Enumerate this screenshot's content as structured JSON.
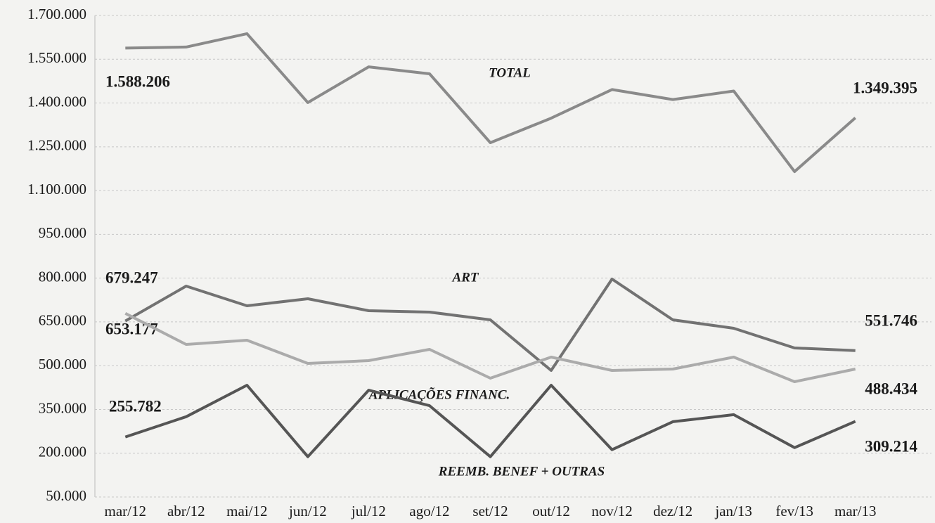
{
  "chart_data": {
    "type": "line",
    "categories": [
      "mar/12",
      "abr/12",
      "mai/12",
      "jun/12",
      "jul/12",
      "ago/12",
      "set/12",
      "out/12",
      "nov/12",
      "dez/12",
      "jan/13",
      "fev/13",
      "mar/13"
    ],
    "series": [
      {
        "name": "TOTAL",
        "color": "#8a8a8a",
        "values": [
          1588206,
          1591760,
          1637500,
          1401500,
          1524000,
          1500000,
          1264000,
          1348000,
          1446000,
          1412000,
          1441000,
          1165000,
          1349395
        ],
        "value_labels": [
          "1.588.206",
          null,
          null,
          null,
          null,
          null,
          null,
          null,
          null,
          null,
          null,
          null,
          "1.349.395"
        ]
      },
      {
        "name": "ART",
        "color": "#727272",
        "values": [
          653177,
          772700,
          705250,
          729350,
          688400,
          683600,
          657000,
          483600,
          796800,
          657000,
          628200,
          560700,
          551746
        ],
        "value_labels": [
          "653.177",
          null,
          null,
          null,
          null,
          null,
          null,
          null,
          null,
          null,
          null,
          null,
          "551.746"
        ]
      },
      {
        "name": "APLICAÇÕES FINANC.",
        "color": "#ababab",
        "values": [
          679247,
          572800,
          587200,
          507700,
          517300,
          555900,
          457100,
          529400,
          483600,
          488400,
          529400,
          445100,
          488434
        ],
        "value_labels": [
          "679.247",
          null,
          null,
          null,
          null,
          null,
          null,
          null,
          null,
          null,
          null,
          null,
          "488.434"
        ]
      },
      {
        "name": "REEMB. BENEF + OUTRAS",
        "color": "#555555",
        "values": [
          255782,
          325000,
          433000,
          188000,
          416000,
          363000,
          188000,
          433000,
          212000,
          308000,
          332000,
          219000,
          309214
        ],
        "value_labels": [
          "255.782",
          null,
          null,
          null,
          null,
          null,
          null,
          null,
          null,
          null,
          null,
          null,
          "309.214"
        ]
      }
    ],
    "ylim": [
      50000,
      1700000
    ],
    "yticks": [
      {
        "value": 50000,
        "label": "50.000"
      },
      {
        "value": 200000,
        "label": "200.000"
      },
      {
        "value": 350000,
        "label": "350.000"
      },
      {
        "value": 500000,
        "label": "500.000"
      },
      {
        "value": 650000,
        "label": "650.000"
      },
      {
        "value": 800000,
        "label": "800.000"
      },
      {
        "value": 950000,
        "label": "950.000"
      },
      {
        "value": 1100000,
        "label": "1.100.000"
      },
      {
        "value": 1250000,
        "label": "1.250.000"
      },
      {
        "value": 1400000,
        "label": "1.400.000"
      },
      {
        "value": 1550000,
        "label": "1.550.000"
      },
      {
        "value": 1700000,
        "label": "1.700.000"
      }
    ],
    "grid": true
  }
}
